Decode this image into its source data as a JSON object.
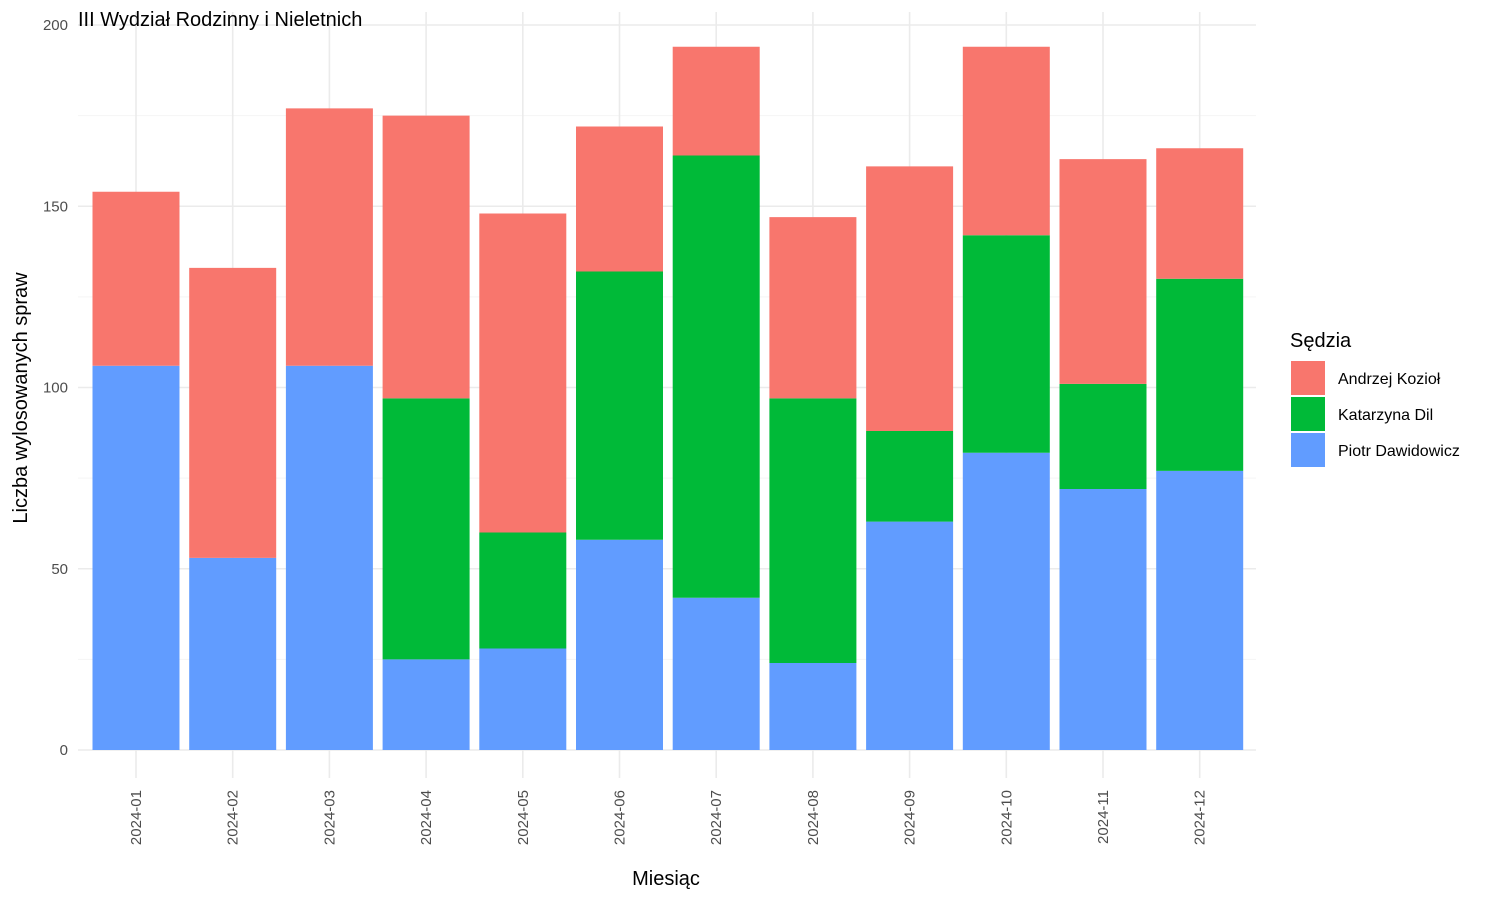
{
  "chart_data": {
    "type": "bar",
    "stacked": true,
    "title": "III Wydział Rodzinny i Nieletnich",
    "xlabel": "Miesiąc",
    "ylabel": "Liczba wylosowanych spraw",
    "ylim": [
      0,
      200
    ],
    "yticks": [
      0,
      50,
      100,
      150,
      200
    ],
    "grid": true,
    "legend_position": "right",
    "legend_title": "Sędzia",
    "categories": [
      "2024-01",
      "2024-02",
      "2024-03",
      "2024-04",
      "2024-05",
      "2024-06",
      "2024-07",
      "2024-08",
      "2024-09",
      "2024-10",
      "2024-11",
      "2024-12"
    ],
    "series": [
      {
        "name": "Piotr Dawidowicz",
        "color": "#619CFF",
        "values": [
          106,
          53,
          106,
          25,
          28,
          58,
          42,
          24,
          63,
          82,
          72,
          77
        ]
      },
      {
        "name": "Katarzyna Dil",
        "color": "#00BA38",
        "values": [
          0,
          0,
          0,
          72,
          32,
          74,
          122,
          73,
          25,
          60,
          29,
          53
        ]
      },
      {
        "name": "Andrzej Kozioł",
        "color": "#F8766D",
        "values": [
          48,
          80,
          71,
          78,
          88,
          40,
          30,
          50,
          73,
          52,
          62,
          36
        ]
      }
    ],
    "legend_order": [
      "Andrzej Kozioł",
      "Katarzyna Dil",
      "Piotr Dawidowicz"
    ]
  }
}
